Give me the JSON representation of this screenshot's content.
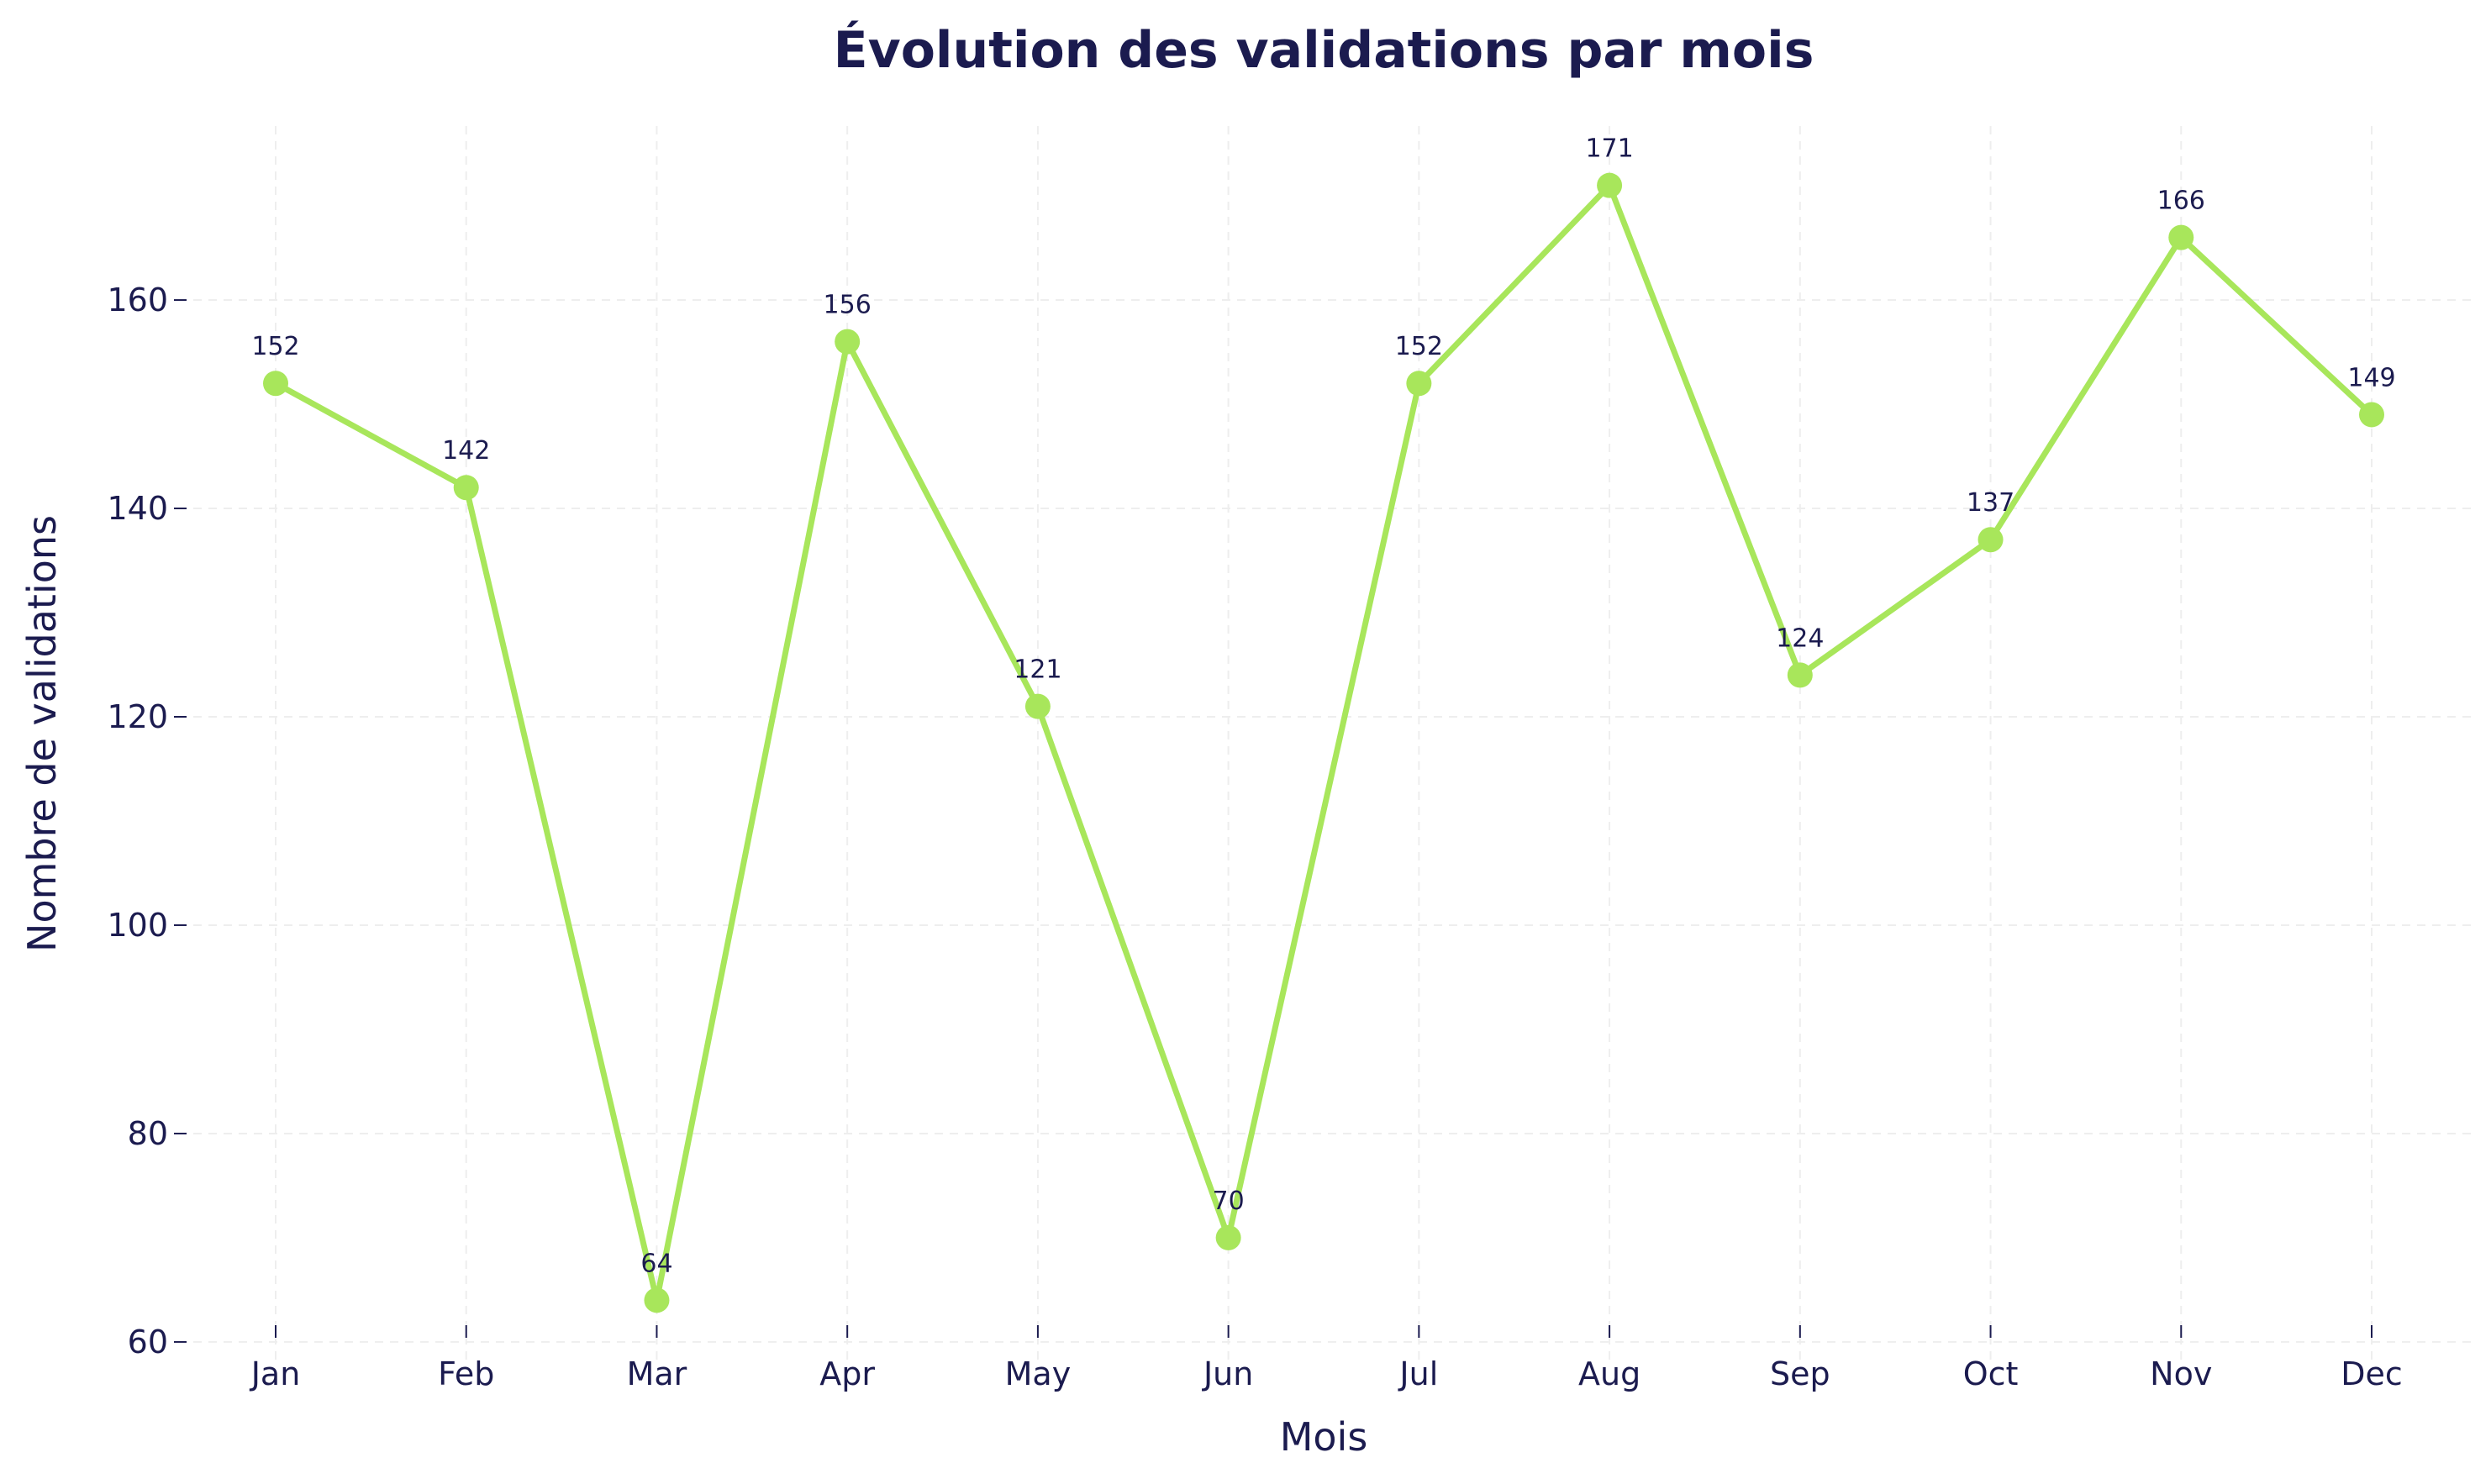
{
  "chart_data": {
    "type": "line",
    "title": "Évolution des validations par mois",
    "xlabel": "Mois",
    "ylabel": "Nombre de validations",
    "categories": [
      "Jan",
      "Feb",
      "Mar",
      "Apr",
      "May",
      "Jun",
      "Jul",
      "Aug",
      "Sep",
      "Oct",
      "Nov",
      "Dec"
    ],
    "series": [
      {
        "values": [
          152,
          142,
          64,
          156,
          121,
          70,
          152,
          171,
          124,
          137,
          166,
          149
        ]
      }
    ],
    "data_labels": [
      "152",
      "142",
      "64",
      "156",
      "121",
      "70",
      "152",
      "171",
      "124",
      "137",
      "166",
      "149"
    ],
    "ylim": [
      58.3,
      176.7
    ],
    "yticks": [
      60,
      80,
      100,
      120,
      140,
      160
    ],
    "grid": true,
    "legend": "none",
    "colors": {
      "line": "#a8e65b",
      "text": "#1b1b4f",
      "grid": "#eeeeee"
    }
  }
}
